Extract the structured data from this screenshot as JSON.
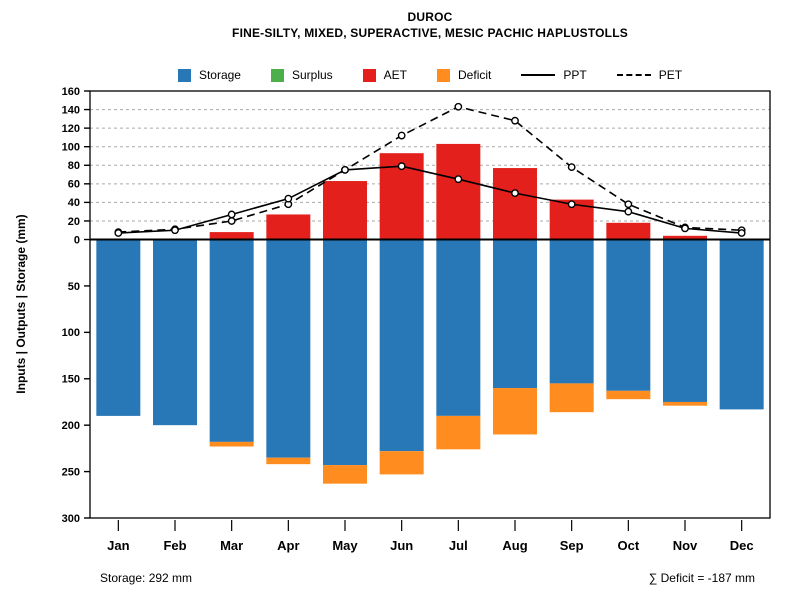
{
  "title": "DUROC",
  "subtitle": "FINE-SILTY, MIXED, SUPERACTIVE, MESIC PACHIC HAPLUSTOLLS",
  "y_axis_label": "Inputs | Outputs | Storage   (mm)",
  "footer": {
    "storage_note": "Storage: 292 mm",
    "deficit_note": "∑ Deficit = -187 mm"
  },
  "colors": {
    "storage": "#2878b8",
    "surplus": "#4daf4a",
    "aet": "#e3201b",
    "deficit": "#ff8c1e",
    "line": "#000000",
    "grid": "#aaaaaa"
  },
  "chart_data": {
    "type": "bar+line",
    "title": "DUROC — monthly water balance",
    "categories": [
      "Jan",
      "Feb",
      "Mar",
      "Apr",
      "May",
      "Jun",
      "Jul",
      "Aug",
      "Sep",
      "Oct",
      "Nov",
      "Dec"
    ],
    "y_upper": {
      "min": 0,
      "max": 160,
      "step": 20
    },
    "y_lower": {
      "min": 0,
      "max": 300,
      "step": 50
    },
    "grid": "dashed horizontal lines in upper (0-160) region only",
    "series": [
      {
        "name": "Storage",
        "kind": "bar-down",
        "color": "storage",
        "values": [
          190,
          200,
          218,
          235,
          243,
          228,
          190,
          160,
          155,
          163,
          175,
          183
        ]
      },
      {
        "name": "Deficit",
        "kind": "bar-down-stacked",
        "color": "deficit",
        "values": [
          0,
          0,
          5,
          7,
          20,
          25,
          36,
          50,
          31,
          9,
          4,
          0
        ]
      },
      {
        "name": "AET",
        "kind": "bar-up",
        "color": "aet",
        "values": [
          0,
          0,
          8,
          27,
          63,
          93,
          103,
          77,
          43,
          18,
          4,
          0
        ]
      },
      {
        "name": "Surplus",
        "kind": "bar-up-stacked",
        "color": "surplus",
        "values": [
          0,
          0,
          0,
          0,
          0,
          0,
          0,
          0,
          0,
          0,
          0,
          0
        ]
      },
      {
        "name": "PPT",
        "kind": "line-solid",
        "values": [
          7,
          10,
          27,
          44,
          75,
          79,
          65,
          50,
          38,
          30,
          12,
          7
        ]
      },
      {
        "name": "PET",
        "kind": "line-dashed",
        "values": [
          8,
          11,
          20,
          38,
          75,
          112,
          143,
          128,
          78,
          38,
          13,
          10
        ]
      }
    ],
    "legend": [
      {
        "label": "Storage",
        "swatch": "square",
        "color": "storage"
      },
      {
        "label": "Surplus",
        "swatch": "square",
        "color": "surplus"
      },
      {
        "label": "AET",
        "swatch": "square",
        "color": "aet"
      },
      {
        "label": "Deficit",
        "swatch": "square",
        "color": "deficit"
      },
      {
        "label": "PPT",
        "swatch": "line-solid"
      },
      {
        "label": "PET",
        "swatch": "line-dashed"
      }
    ],
    "legend_position": "top, centered above plot"
  }
}
